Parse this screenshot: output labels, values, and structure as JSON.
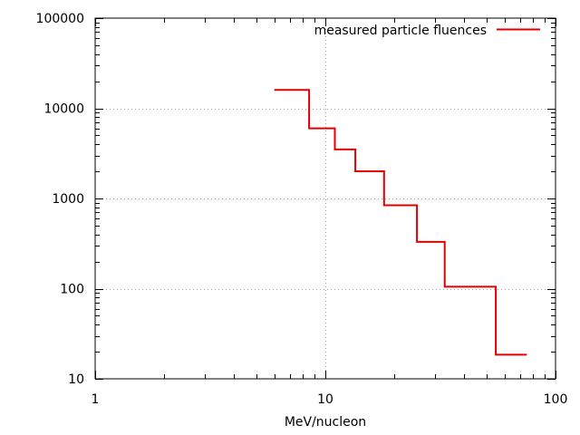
{
  "chart_data": {
    "type": "line",
    "step": true,
    "x_scale": "log",
    "y_scale": "log",
    "xlim": [
      1,
      100
    ],
    "ylim": [
      10,
      100000
    ],
    "xlabel": "MeV/nucleon",
    "ylabel": "",
    "grid": true,
    "legend_position": "top-right",
    "x_ticks": [
      1,
      10,
      100
    ],
    "x_tick_labels": [
      "1",
      "10",
      "100"
    ],
    "y_ticks": [
      10,
      100,
      1000,
      10000,
      100000
    ],
    "y_tick_labels": [
      "10",
      "100",
      "1000",
      "10000",
      "100000"
    ],
    "series": [
      {
        "name": "measured particle fluences",
        "color": "#e00000",
        "bins": [
          {
            "x_start": 6.0,
            "x_end": 8.5,
            "y": 16000
          },
          {
            "x_start": 8.5,
            "x_end": 11.0,
            "y": 6000
          },
          {
            "x_start": 11.0,
            "x_end": 13.5,
            "y": 3500
          },
          {
            "x_start": 13.5,
            "x_end": 18.0,
            "y": 2000
          },
          {
            "x_start": 18.0,
            "x_end": 25.0,
            "y": 840
          },
          {
            "x_start": 25.0,
            "x_end": 33.0,
            "y": 330
          },
          {
            "x_start": 33.0,
            "x_end": 55.0,
            "y": 105
          },
          {
            "x_start": 55.0,
            "x_end": 75.0,
            "y": 18.5
          }
        ]
      }
    ]
  }
}
